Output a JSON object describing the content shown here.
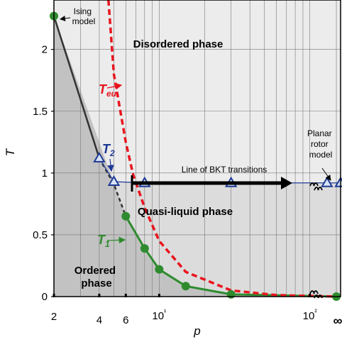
{
  "chart_data": {
    "type": "line",
    "xlabel": "p",
    "ylabel": "T",
    "x_scale": "log",
    "x_range": [
      2,
      160
    ],
    "ylim": [
      0,
      2.4
    ],
    "x_ticks": [
      {
        "value": 2,
        "label": "2"
      },
      {
        "value": 4,
        "label": "4"
      },
      {
        "value": 6,
        "label": "6"
      },
      {
        "value": 10,
        "label": "10¹"
      },
      {
        "value": 100,
        "label": "10²"
      }
    ],
    "x_infinity_label": "∞",
    "y_ticks": [
      {
        "value": 0,
        "label": "0"
      },
      {
        "value": 0.5,
        "label": "0.5"
      },
      {
        "value": 1,
        "label": "1"
      },
      {
        "value": 1.5,
        "label": "1.5"
      },
      {
        "value": 2,
        "label": "2"
      }
    ],
    "grid": true,
    "regions": {
      "disordered": "Disordered phase",
      "quasi_liquid": "Quasi-liquid phase",
      "ordered": "Ordered phase"
    },
    "annotations": {
      "ising": "Ising model",
      "planar_rotor": "Planar rotor model",
      "bkt_line": "Line of BKT transitions",
      "t_eu_main": "T",
      "t_eu_sub": "eu",
      "t1_main": "T",
      "t1_sub": "1",
      "t2_main": "T",
      "t2_sub": "2"
    },
    "series": [
      {
        "key": "ordered_boundary",
        "color": "#333333",
        "points": [
          [
            2,
            2.27
          ],
          [
            4,
            1.12
          ],
          [
            5,
            0.91
          ]
        ]
      },
      {
        "key": "T1",
        "color": "#2e8b2e",
        "points": [
          [
            2,
            2.27
          ],
          [
            6,
            0.65
          ],
          [
            8,
            0.39
          ],
          [
            10,
            0.22
          ],
          [
            15,
            0.085
          ],
          [
            30,
            0.018
          ],
          [
            150,
            0.0
          ]
        ]
      },
      {
        "key": "T2",
        "color": "#1f3a93",
        "points": [
          [
            4,
            1.12
          ],
          [
            5,
            0.93
          ],
          [
            8,
            0.92
          ],
          [
            30,
            0.92
          ],
          [
            130,
            0.92
          ],
          [
            160,
            0.92
          ]
        ]
      },
      {
        "key": "T_eu",
        "color": "#e8141e",
        "points": [
          [
            4.6,
            2.4
          ],
          [
            5,
            1.8
          ],
          [
            6,
            1.25
          ],
          [
            6.7,
            0.99
          ],
          [
            8,
            0.72
          ],
          [
            10,
            0.45
          ],
          [
            15,
            0.2
          ],
          [
            30,
            0.05
          ],
          [
            60,
            0.012
          ],
          [
            150,
            0.0
          ]
        ]
      }
    ],
    "colors": {
      "ordered_fill": "#c2c2c2",
      "quasi_fill": "#dcdcdc",
      "disordered_fill": "#ececec",
      "frame": "#000000"
    }
  }
}
